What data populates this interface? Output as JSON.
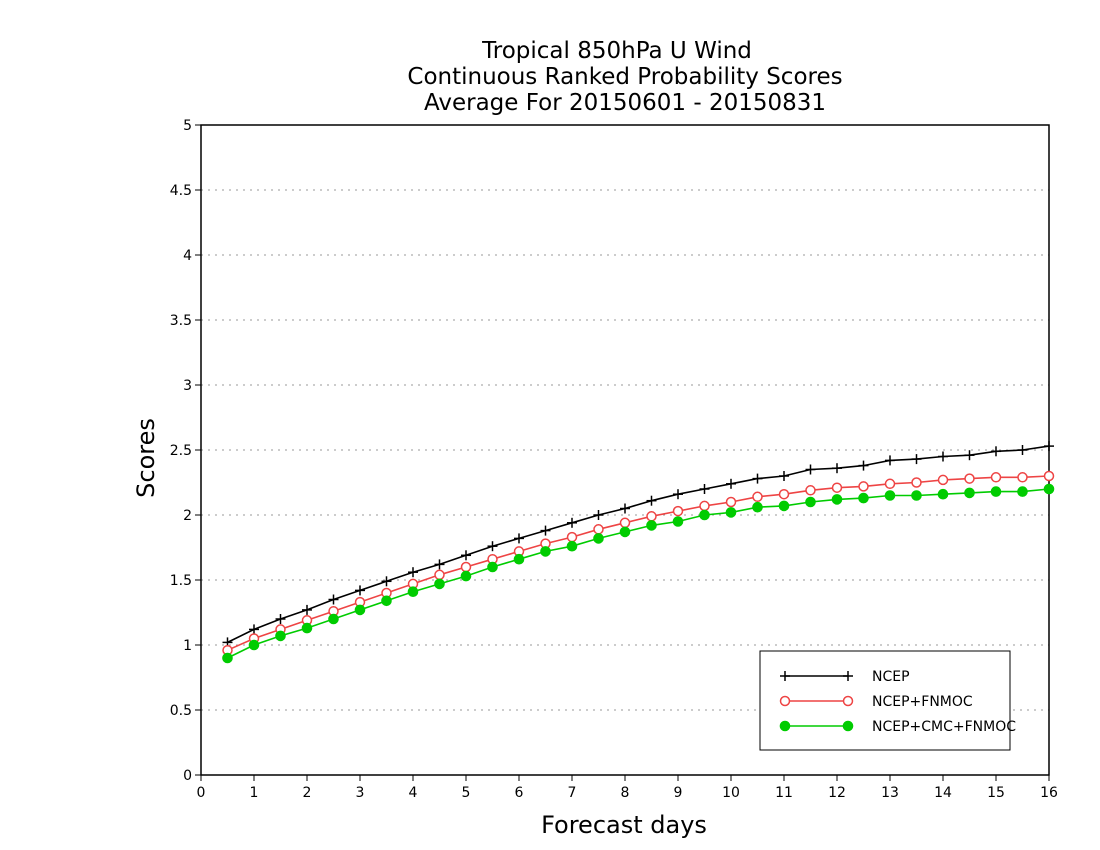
{
  "chart_data": {
    "type": "line",
    "title_lines": [
      "Tropical 850hPa U Wind",
      "Continuous Ranked Probability Scores",
      "Average For 20150601 - 20150831"
    ],
    "xlabel": "Forecast days",
    "ylabel": "Scores",
    "xlim": [
      0,
      16
    ],
    "ylim": [
      0,
      5
    ],
    "x_ticks": [
      "0",
      "1",
      "2",
      "3",
      "4",
      "5",
      "6",
      "7",
      "8",
      "9",
      "10",
      "11",
      "12",
      "13",
      "14",
      "15",
      "16"
    ],
    "y_ticks": [
      "0",
      "0.5",
      "1",
      "1.5",
      "2",
      "2.5",
      "3",
      "3.5",
      "4",
      "4.5",
      "5"
    ],
    "grid": "horizontal dotted",
    "legend_position": "bottom-right",
    "x": [
      0.5,
      1,
      1.5,
      2,
      2.5,
      3,
      3.5,
      4,
      4.5,
      5,
      5.5,
      6,
      6.5,
      7,
      7.5,
      8,
      8.5,
      9,
      9.5,
      10,
      10.5,
      11,
      11.5,
      12,
      12.5,
      13,
      13.5,
      14,
      14.5,
      15,
      15.5,
      16
    ],
    "series": [
      {
        "name": "NCEP",
        "marker": "plus",
        "color": "#000000",
        "values": [
          1.02,
          1.12,
          1.2,
          1.27,
          1.35,
          1.42,
          1.49,
          1.56,
          1.62,
          1.69,
          1.76,
          1.82,
          1.88,
          1.94,
          2.0,
          2.05,
          2.11,
          2.16,
          2.2,
          2.24,
          2.28,
          2.3,
          2.35,
          2.36,
          2.38,
          2.42,
          2.43,
          2.45,
          2.46,
          2.49,
          2.5,
          2.53
        ]
      },
      {
        "name": "NCEP+FNMOC",
        "marker": "open-circle",
        "color": "#ee4444",
        "values": [
          0.96,
          1.05,
          1.12,
          1.19,
          1.26,
          1.33,
          1.4,
          1.47,
          1.54,
          1.6,
          1.66,
          1.72,
          1.78,
          1.83,
          1.89,
          1.94,
          1.99,
          2.03,
          2.07,
          2.1,
          2.14,
          2.16,
          2.19,
          2.21,
          2.22,
          2.24,
          2.25,
          2.27,
          2.28,
          2.29,
          2.29,
          2.3
        ]
      },
      {
        "name": "NCEP+CMC+FNMOC",
        "marker": "filled-circle",
        "color": "#00cc00",
        "values": [
          0.9,
          1.0,
          1.07,
          1.13,
          1.2,
          1.27,
          1.34,
          1.41,
          1.47,
          1.53,
          1.6,
          1.66,
          1.72,
          1.76,
          1.82,
          1.87,
          1.92,
          1.95,
          2.0,
          2.02,
          2.06,
          2.07,
          2.1,
          2.12,
          2.13,
          2.15,
          2.15,
          2.16,
          2.17,
          2.18,
          2.18,
          2.2
        ]
      }
    ]
  }
}
